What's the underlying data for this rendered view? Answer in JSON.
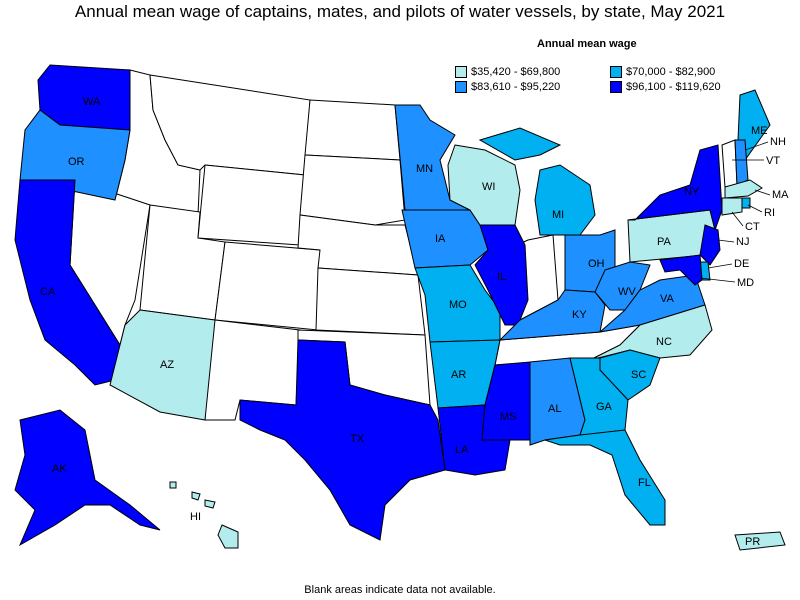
{
  "title": "Annual mean wage of captains, mates, and pilots of water vessels, by state, May 2021",
  "legend": {
    "title": "Annual mean wage",
    "items": [
      {
        "label": "$35,420 - $69,800",
        "color": "#b2ecec"
      },
      {
        "label": "$70,000 - $82,900",
        "color": "#00b0f0"
      },
      {
        "label": "$83,610 - $95,220",
        "color": "#1e90ff"
      },
      {
        "label": "$96,100 - $119,620",
        "color": "#0000ff"
      }
    ]
  },
  "footnote": "Blank areas indicate data not available.",
  "colors": {
    "none": "#ffffff",
    "c1": "#b2ecec",
    "c2": "#00b0f0",
    "c3": "#1e90ff",
    "c4": "#0000ff"
  },
  "states": {
    "WA": {
      "label": "WA",
      "bin": 4
    },
    "OR": {
      "label": "OR",
      "bin": 3
    },
    "CA": {
      "label": "CA",
      "bin": 4
    },
    "AZ": {
      "label": "AZ",
      "bin": 1
    },
    "TX": {
      "label": "TX",
      "bin": 4
    },
    "MN": {
      "label": "MN",
      "bin": 3
    },
    "IA": {
      "label": "IA",
      "bin": 3
    },
    "MO": {
      "label": "MO",
      "bin": 2
    },
    "AR": {
      "label": "AR",
      "bin": 2
    },
    "LA": {
      "label": "LA",
      "bin": 4
    },
    "WI": {
      "label": "WI",
      "bin": 1
    },
    "IL": {
      "label": "IL",
      "bin": 4
    },
    "MS": {
      "label": "MS",
      "bin": 4
    },
    "MI": {
      "label": "MI",
      "bin": 2
    },
    "AL": {
      "label": "AL",
      "bin": 3
    },
    "OH": {
      "label": "OH",
      "bin": 3
    },
    "KY": {
      "label": "KY",
      "bin": 3
    },
    "WV": {
      "label": "WV",
      "bin": 3
    },
    "VA": {
      "label": "VA",
      "bin": 3
    },
    "NC": {
      "label": "NC",
      "bin": 1
    },
    "SC": {
      "label": "SC",
      "bin": 2
    },
    "GA": {
      "label": "GA",
      "bin": 2
    },
    "FL": {
      "label": "FL",
      "bin": 2
    },
    "PA": {
      "label": "PA",
      "bin": 1
    },
    "NY": {
      "label": "NY",
      "bin": 4
    },
    "NJ": {
      "label": "NJ",
      "bin": 4
    },
    "DE": {
      "label": "DE",
      "bin": 2
    },
    "MD": {
      "label": "MD",
      "bin": 4
    },
    "ME": {
      "label": "ME",
      "bin": 2
    },
    "NH": {
      "label": "NH",
      "bin": 3
    },
    "VT": {
      "label": "VT",
      "bin": 0
    },
    "MA": {
      "label": "MA",
      "bin": 1
    },
    "RI": {
      "label": "RI",
      "bin": 2
    },
    "CT": {
      "label": "CT",
      "bin": 1
    },
    "AK": {
      "label": "AK",
      "bin": 4
    },
    "HI": {
      "label": "HI",
      "bin": 1
    },
    "PR": {
      "label": "PR",
      "bin": 1
    }
  }
}
